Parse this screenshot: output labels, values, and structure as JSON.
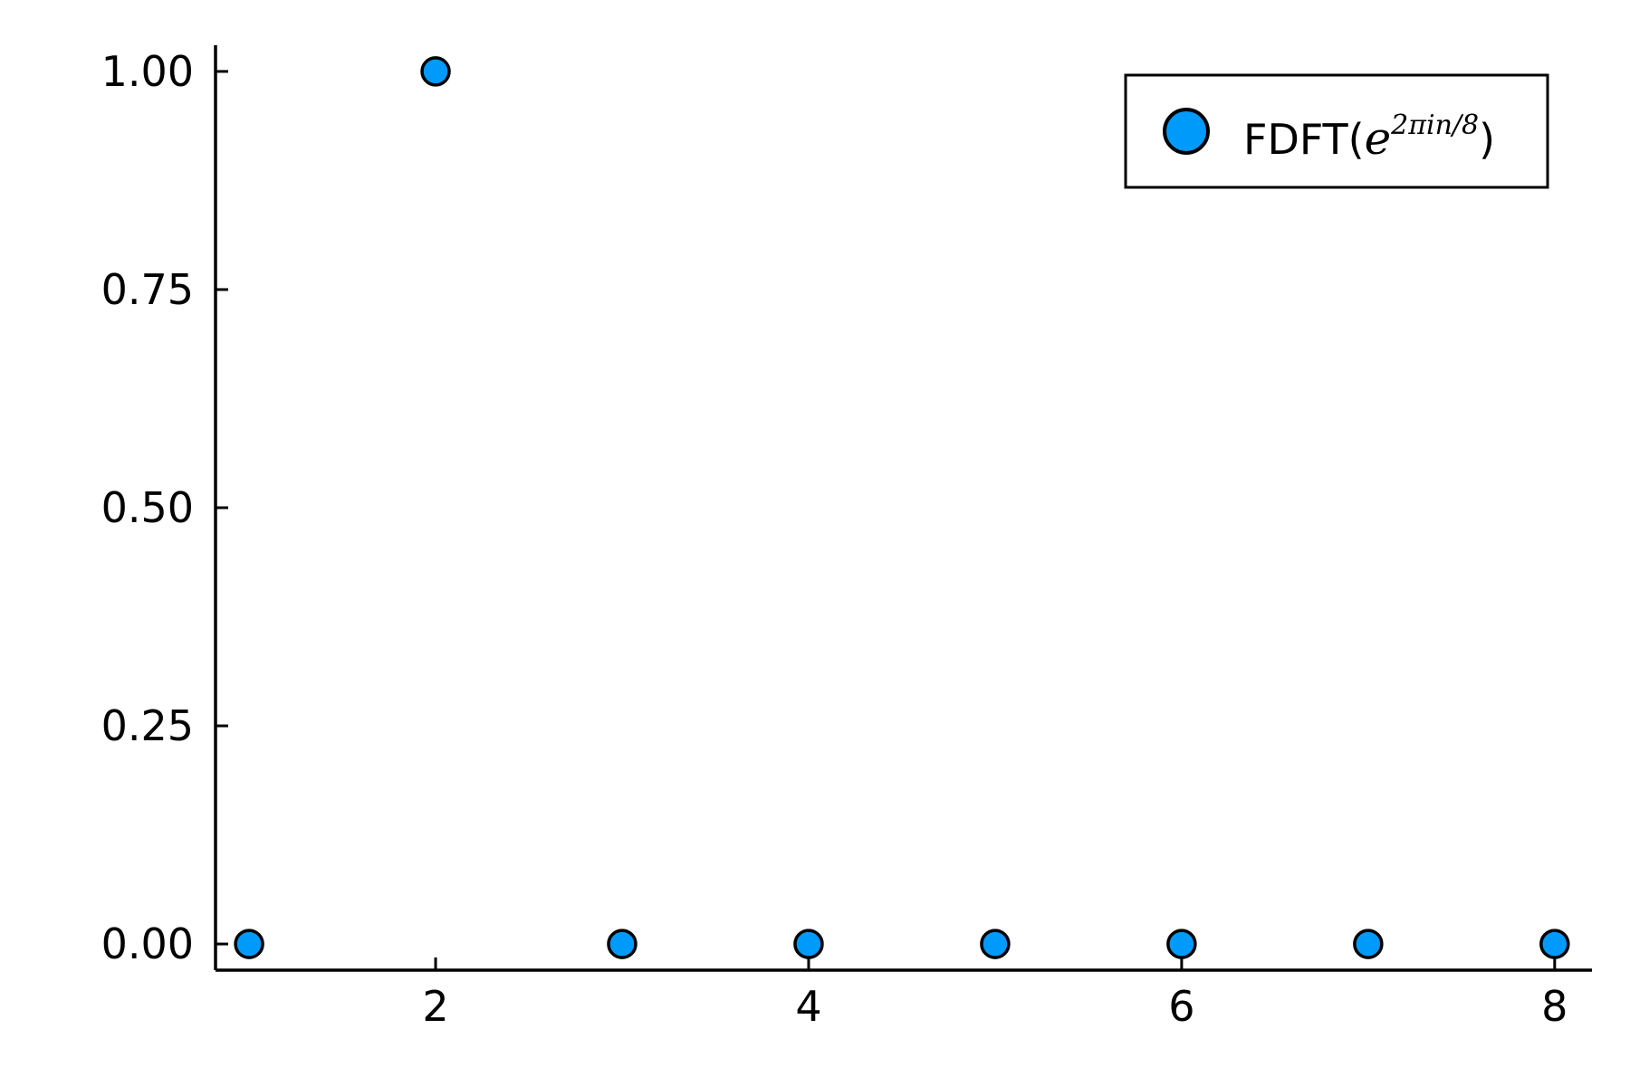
{
  "chart_data": {
    "type": "scatter",
    "x": [
      1,
      2,
      3,
      4,
      5,
      6,
      7,
      8
    ],
    "series": [
      {
        "name": "FDFT(e^{2πin/8})",
        "y": [
          0,
          1,
          0,
          0,
          0,
          0,
          0,
          0
        ],
        "color": "#009AFA"
      }
    ],
    "xlim": [
      0.82,
      8.2
    ],
    "ylim": [
      -0.03,
      1.03
    ],
    "xticks": [
      2,
      4,
      6,
      8
    ],
    "xtick_labels": [
      "2",
      "4",
      "6",
      "8"
    ],
    "yticks": [
      0,
      0.25,
      0.5,
      0.75,
      1.0
    ],
    "ytick_labels": [
      "0.00",
      "0.25",
      "0.50",
      "0.75",
      "1.00"
    ],
    "grid": false,
    "legend_position": "top-right",
    "legend": {
      "prefix": "FDFT(",
      "base": "e",
      "exponent": "2πin/8",
      "suffix": ")"
    }
  }
}
